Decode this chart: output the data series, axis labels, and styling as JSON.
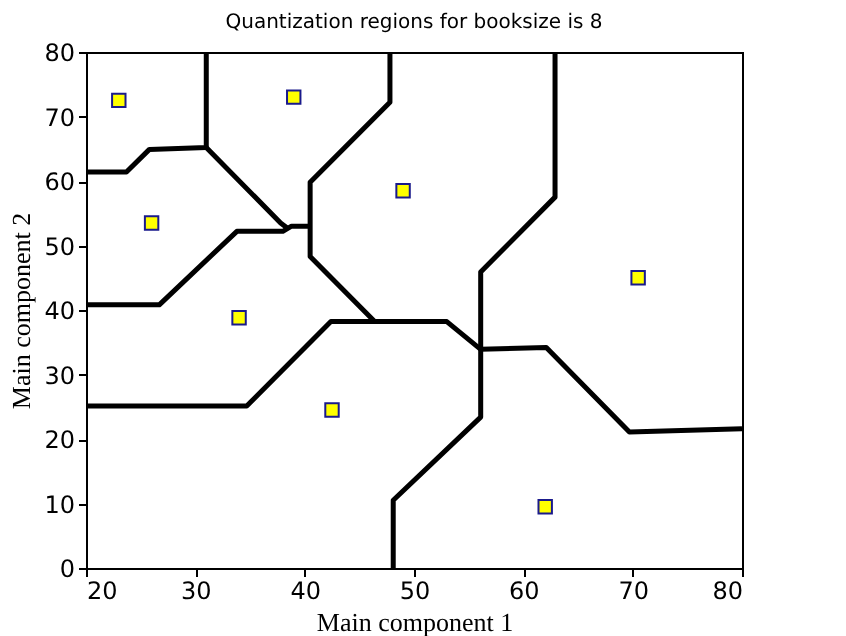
{
  "chart_data": {
    "type": "scatter",
    "title": "Quantization regions for booksize is 8",
    "xlabel": "Main component 1",
    "ylabel": "Main component 2",
    "xlim": [
      20,
      80
    ],
    "ylim": [
      0,
      80
    ],
    "xticks": [
      20,
      30,
      40,
      50,
      60,
      70,
      80
    ],
    "yticks": [
      0,
      10,
      20,
      30,
      40,
      50,
      60,
      70,
      80
    ],
    "grid": false,
    "x": [
      23,
      26,
      39,
      49,
      34,
      42.5,
      70.5,
      62
    ],
    "series": [
      {
        "marker": "square",
        "color": "#ffff00",
        "values": [
          72.5,
          53.5,
          73,
          58.5,
          38.8,
          24.5,
          45,
          9.5
        ]
      },
      {
        "type": "line",
        "color": "#000000",
        "line_style": "solid",
        "x": [
          20,
          23.7,
          25.8,
          31,
          31
        ],
        "values": [
          61.4,
          61.4,
          64.9,
          65.2,
          80
        ]
      },
      {
        "type": "line",
        "color": "#000000",
        "line_style": "solid",
        "x": [
          31,
          37.8,
          38.5
        ],
        "values": [
          65.2,
          53.5,
          52.6
        ]
      },
      {
        "type": "line",
        "color": "#000000",
        "line_style": "solid",
        "x": [
          20,
          26.7,
          33.8,
          38,
          38.8,
          40.5
        ],
        "values": [
          40.8,
          40.8,
          52.2,
          52.2,
          53,
          53
        ]
      },
      {
        "type": "line",
        "color": "#000000",
        "line_style": "solid",
        "x": [
          47.8,
          47.8,
          40.5,
          40.5,
          46.4
        ],
        "values": [
          80,
          72.2,
          59.8,
          48.3,
          38.2
        ]
      },
      {
        "type": "line",
        "color": "#000000",
        "line_style": "solid",
        "x": [
          20,
          34.7,
          42.4,
          53,
          56.1
        ],
        "values": [
          25.1,
          25.1,
          38.2,
          38.2,
          33.9
        ]
      },
      {
        "type": "line",
        "color": "#000000",
        "line_style": "solid",
        "x": [
          56.1,
          62.1,
          69.7,
          80
        ],
        "values": [
          33.9,
          34.2,
          21.1,
          21.6
        ]
      },
      {
        "type": "line",
        "color": "#000000",
        "line_style": "solid",
        "x": [
          62.9,
          62.9,
          56.1,
          56.1,
          48.1,
          48.1
        ],
        "values": [
          80,
          57.5,
          45.9,
          23.4,
          10.5,
          0
        ]
      }
    ]
  }
}
